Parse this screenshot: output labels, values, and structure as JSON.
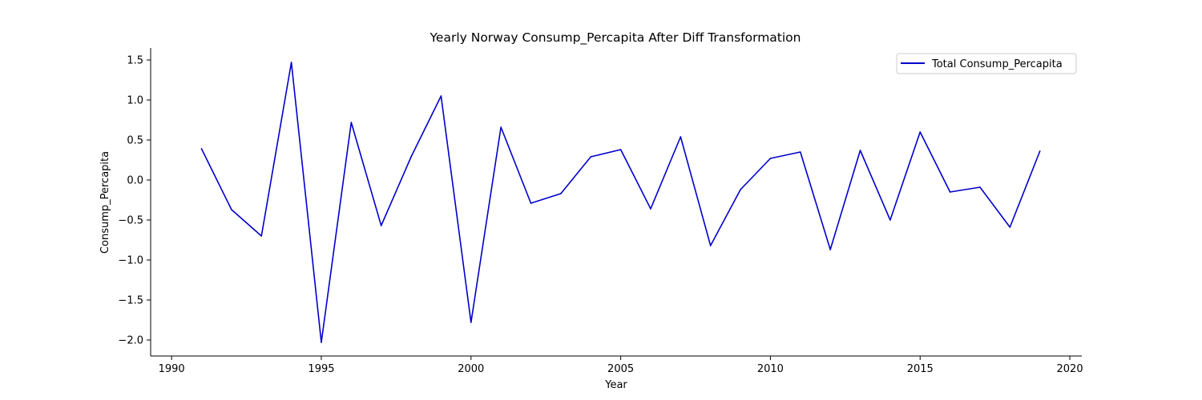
{
  "chart_data": {
    "type": "line",
    "title": "Yearly Norway Consump_Percapita After Diff Transformation",
    "xlabel": "Year",
    "ylabel": "Consump_Percapita",
    "xlim": [
      1989.3,
      2020.4
    ],
    "ylim": [
      -2.2,
      1.65
    ],
    "xticks": [
      1990,
      1995,
      2000,
      2005,
      2010,
      2015,
      2020
    ],
    "yticks": [
      -2.0,
      -1.5,
      -1.0,
      -0.5,
      0.0,
      0.5,
      1.0,
      1.5
    ],
    "xtick_labels": [
      "1990",
      "1995",
      "2000",
      "2005",
      "2010",
      "2015",
      "2020"
    ],
    "ytick_labels": [
      "−2.0",
      "−1.5",
      "−1.0",
      "−0.5",
      "0.0",
      "0.5",
      "1.0",
      "1.5"
    ],
    "grid": false,
    "legend_position": "top-right",
    "series": [
      {
        "name": "Total Consump_Percapita",
        "color": "#0000cc",
        "x": [
          1991,
          1992,
          1993,
          1994,
          1995,
          1996,
          1997,
          1998,
          1999,
          2000,
          2001,
          2002,
          2003,
          2004,
          2005,
          2006,
          2007,
          2008,
          2009,
          2010,
          2011,
          2012,
          2013,
          2014,
          2015,
          2016,
          2017,
          2018,
          2019
        ],
        "values": [
          0.39,
          -0.37,
          -0.7,
          1.47,
          -2.03,
          0.72,
          -0.57,
          0.29,
          1.05,
          -1.78,
          0.66,
          -0.29,
          -0.17,
          0.29,
          0.38,
          -0.36,
          0.54,
          -0.82,
          -0.12,
          0.27,
          0.35,
          -0.87,
          0.37,
          -0.5,
          0.6,
          -0.15,
          -0.09,
          -0.59,
          0.36
        ]
      }
    ]
  }
}
